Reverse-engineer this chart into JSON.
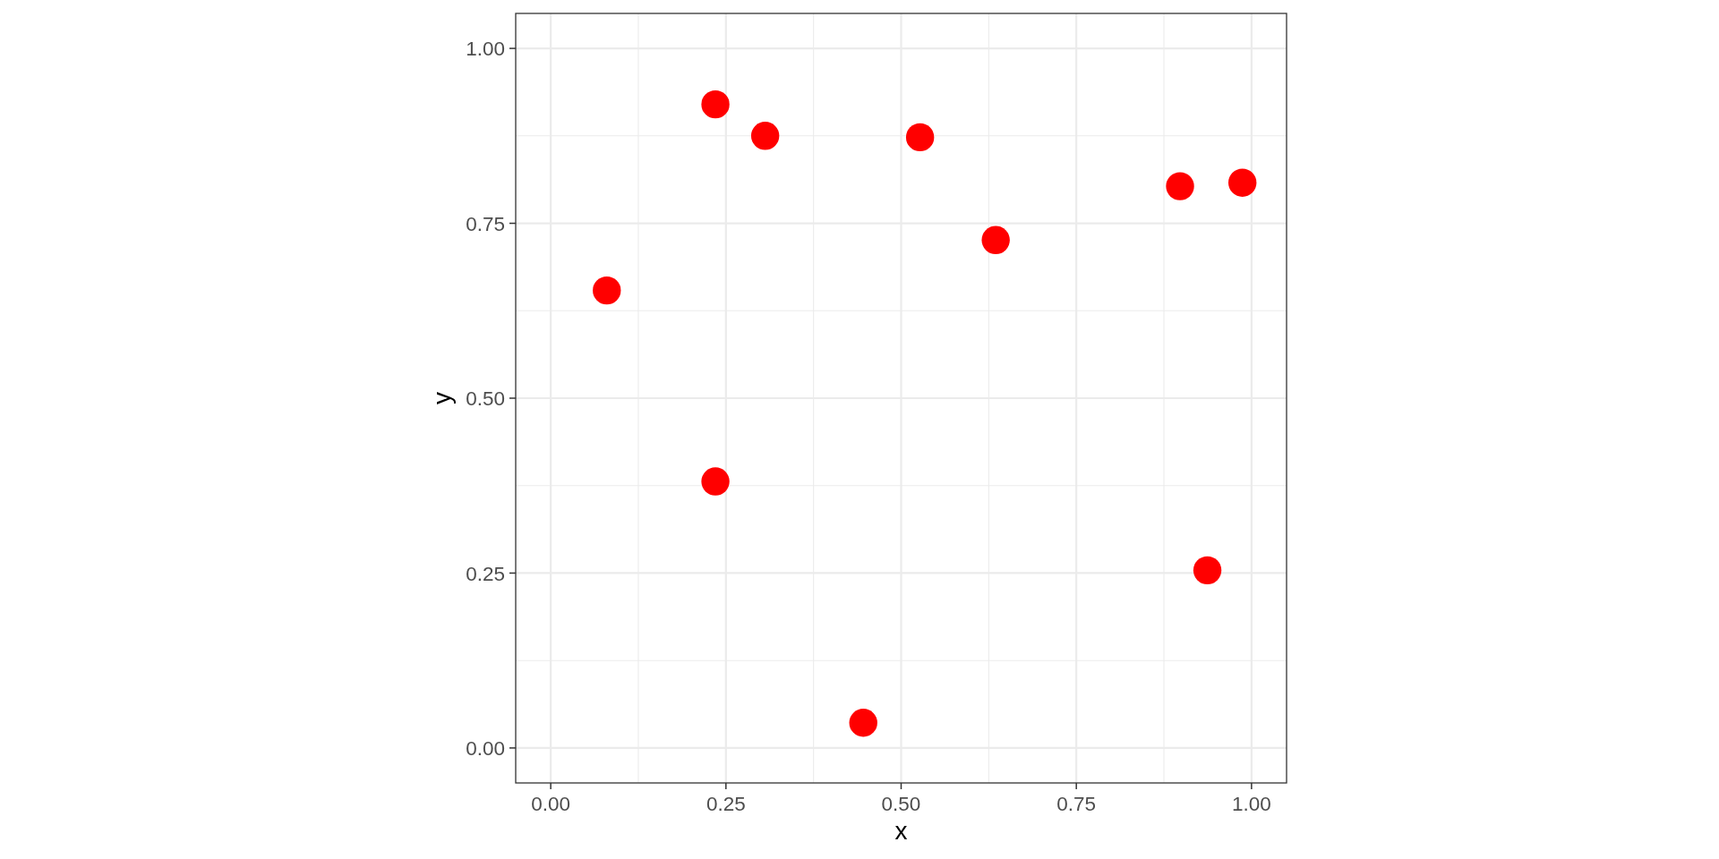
{
  "chart_data": {
    "type": "scatter",
    "xlabel": "x",
    "ylabel": "y",
    "x": [
      0.08,
      0.235,
      0.235,
      0.306,
      0.446,
      0.527,
      0.635,
      0.898,
      0.937,
      0.987
    ],
    "series": [
      {
        "color": "#ff0000",
        "values": [
          0.654,
          0.92,
          0.381,
          0.875,
          0.036,
          0.873,
          0.726,
          0.803,
          0.254,
          0.808
        ]
      }
    ],
    "xlim": [
      -0.05,
      1.05
    ],
    "ylim": [
      -0.05,
      1.05
    ],
    "xticks": [
      {
        "value": 0,
        "label": "0.00"
      },
      {
        "value": 0.25,
        "label": "0.25"
      },
      {
        "value": 0.5,
        "label": "0.50"
      },
      {
        "value": 0.75,
        "label": "0.75"
      },
      {
        "value": 1,
        "label": "1.00"
      }
    ],
    "yticks": [
      {
        "value": 0,
        "label": "0.00"
      },
      {
        "value": 0.25,
        "label": "0.25"
      },
      {
        "value": 0.5,
        "label": "0.50"
      },
      {
        "value": 0.75,
        "label": "0.75"
      },
      {
        "value": 1,
        "label": "1.00"
      }
    ],
    "grid": true,
    "marker": "circle"
  }
}
